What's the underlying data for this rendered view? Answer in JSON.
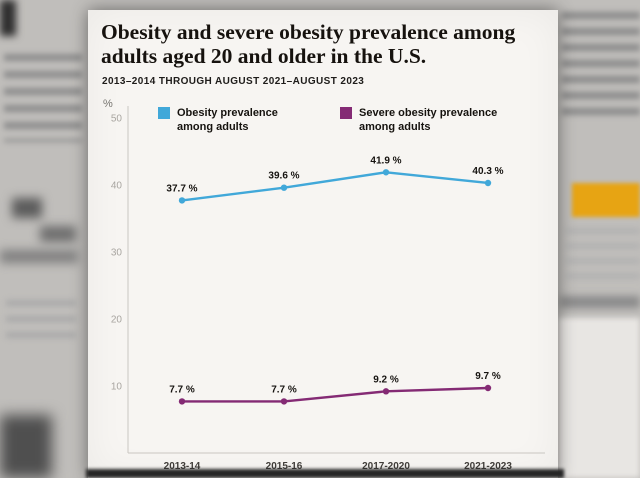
{
  "card": {
    "title_line1": "Obesity and severe obesity prevalence among",
    "title_line2": "adults aged 20 and older in the U.S.",
    "subtitle": "2013–2014 THROUGH AUGUST 2021–AUGUST 2023"
  },
  "chart_data": {
    "type": "line",
    "title": "Obesity and severe obesity prevalence among adults aged 20 and older in the U.S.",
    "subtitle": "2013–2014 THROUGH AUGUST 2021–AUGUST 2023",
    "categories": [
      "2013-14",
      "2015-16",
      "2017-2020",
      "2021-2023"
    ],
    "series": [
      {
        "name": "Obesity prevalence among adults",
        "color": "#41a8d9",
        "values": [
          37.7,
          39.6,
          41.9,
          40.3
        ],
        "point_labels": [
          "37.7 %",
          "39.6 %",
          "41.9 %",
          "40.3 %"
        ]
      },
      {
        "name": "Severe obesity prevalence among adults",
        "color": "#842a74",
        "values": [
          7.7,
          7.7,
          9.2,
          9.7
        ],
        "point_labels": [
          "7.7 %",
          "7.7 %",
          "9.2 %",
          "9.7 %"
        ]
      }
    ],
    "ylabel": "%",
    "yticks": [
      10,
      20,
      30,
      40,
      50
    ],
    "ylim": [
      0,
      50
    ],
    "grid": false,
    "legend_position": "top"
  }
}
